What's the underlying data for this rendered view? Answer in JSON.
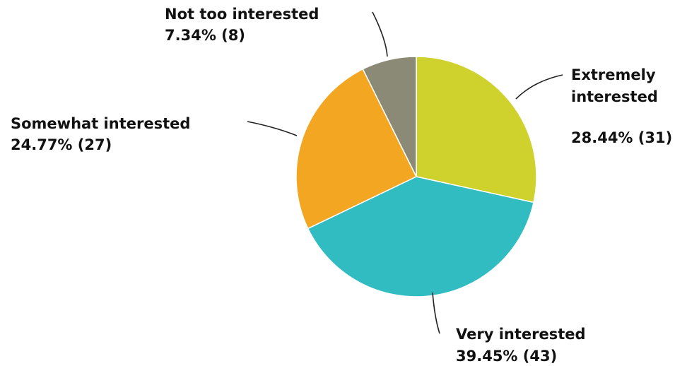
{
  "chart_data": {
    "type": "pie",
    "title": "",
    "slices": [
      {
        "category": "Extremely interested",
        "label_line1": "Extremely",
        "label_line2": "interested",
        "value_text": "28.44% (31)",
        "percent": 28.44,
        "count": 31,
        "color": "#cfd12d"
      },
      {
        "category": "Very interested",
        "label_line1": "Very interested",
        "value_text": "39.45% (43)",
        "percent": 39.45,
        "count": 43,
        "color": "#31bcc1"
      },
      {
        "category": "Somewhat interested",
        "label_line1": "Somewhat interested",
        "value_text": "24.77% (27)",
        "percent": 24.77,
        "count": 27,
        "color": "#f2a621"
      },
      {
        "category": "Not too interested",
        "label_line1": "Not too interested",
        "value_text": "7.34% (8)",
        "percent": 7.34,
        "count": 8,
        "color": "#8b8a76"
      }
    ]
  }
}
